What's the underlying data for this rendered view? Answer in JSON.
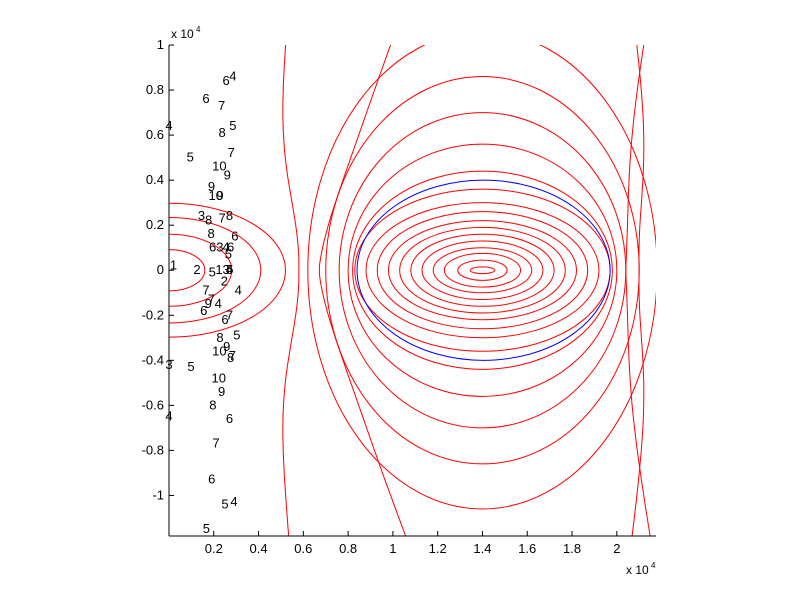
{
  "chart_data": {
    "type": "contour",
    "title": "",
    "xlabel": "",
    "ylabel": "",
    "x_exponent_label": "x 10",
    "x_exponent_power": "4",
    "y_exponent_label": "x 10",
    "y_exponent_power": "4",
    "xlim": [
      0,
      0.2175
    ],
    "ylim": [
      -1.18,
      1.0
    ],
    "xticks": [
      {
        "value": 0.02,
        "label": "0.2"
      },
      {
        "value": 0.04,
        "label": "0.4"
      },
      {
        "value": 0.06,
        "label": "0.6"
      },
      {
        "value": 0.08,
        "label": "0.8"
      },
      {
        "value": 0.1,
        "label": "1"
      },
      {
        "value": 0.12,
        "label": "1.2"
      },
      {
        "value": 0.14,
        "label": "1.4"
      },
      {
        "value": 0.16,
        "label": "1.6"
      },
      {
        "value": 0.18,
        "label": "1.8"
      },
      {
        "value": 0.2,
        "label": "2"
      }
    ],
    "yticks": [
      {
        "value": 1.0,
        "label": "1"
      },
      {
        "value": 0.8,
        "label": "0.8"
      },
      {
        "value": 0.6,
        "label": "0.6"
      },
      {
        "value": 0.4,
        "label": "0.4"
      },
      {
        "value": 0.2,
        "label": "0.2"
      },
      {
        "value": 0.0,
        "label": "0"
      },
      {
        "value": -0.2,
        "label": "-0.2"
      },
      {
        "value": -0.4,
        "label": "-0.4"
      },
      {
        "value": -0.6,
        "label": "-0.6"
      },
      {
        "value": -0.8,
        "label": "-0.8"
      },
      {
        "value": -1.0,
        "label": "-1"
      }
    ],
    "contour_color": "#ff0000",
    "boundary_color": "#0000ff",
    "left_source_center": [
      0.0,
      0.0
    ],
    "inner_source_center": [
      0.14,
      0.0
    ],
    "boundary_ellipse": {
      "cx": 0.1405,
      "cy": 0.0,
      "rx": 0.0565,
      "ry": 0.4
    },
    "contour_labels": [
      {
        "text": "1",
        "x": 0.002,
        "y": 0.02
      },
      {
        "text": "2",
        "x": 0.0125,
        "y": 0.0
      },
      {
        "text": "3",
        "x": 0.0145,
        "y": 0.24
      },
      {
        "text": "3",
        "x": 0.0,
        "y": -0.42
      },
      {
        "text": "4",
        "x": 0.0,
        "y": 0.64
      },
      {
        "text": "4",
        "x": 0.0,
        "y": -0.65
      },
      {
        "text": "4",
        "x": 0.027,
        "y": 0.0
      },
      {
        "text": "5",
        "x": 0.0095,
        "y": 0.5
      },
      {
        "text": "5",
        "x": 0.0098,
        "y": -0.43
      },
      {
        "text": "6",
        "x": 0.0165,
        "y": 0.76
      },
      {
        "text": "7",
        "x": 0.0235,
        "y": 0.73
      },
      {
        "text": "8",
        "x": 0.0177,
        "y": 0.22
      },
      {
        "text": "9",
        "x": 0.019,
        "y": 0.37
      },
      {
        "text": "6",
        "x": 0.0155,
        "y": -0.18
      },
      {
        "text": "7",
        "x": 0.0165,
        "y": -0.09
      },
      {
        "text": "6",
        "x": 0.0255,
        "y": 0.84
      },
      {
        "text": "8",
        "x": 0.0237,
        "y": 0.61
      },
      {
        "text": "10",
        "x": 0.0225,
        "y": 0.46
      },
      {
        "text": "10",
        "x": 0.0209,
        "y": 0.33
      },
      {
        "text": "9",
        "x": 0.0228,
        "y": 0.33
      },
      {
        "text": "7",
        "x": 0.0237,
        "y": 0.23
      },
      {
        "text": "8",
        "x": 0.027,
        "y": 0.24
      },
      {
        "text": "9",
        "x": 0.026,
        "y": 0.42
      },
      {
        "text": "7",
        "x": 0.0278,
        "y": 0.52
      },
      {
        "text": "5",
        "x": 0.0285,
        "y": 0.64
      },
      {
        "text": "4",
        "x": 0.0285,
        "y": 0.86
      },
      {
        "text": "8",
        "x": 0.0188,
        "y": 0.16
      },
      {
        "text": "6",
        "x": 0.0195,
        "y": 0.1
      },
      {
        "text": "5",
        "x": 0.0193,
        "y": -0.01
      },
      {
        "text": "3",
        "x": 0.0227,
        "y": 0.1
      },
      {
        "text": "1",
        "x": 0.0223,
        "y": 0.0
      },
      {
        "text": "2",
        "x": 0.0247,
        "y": -0.05
      },
      {
        "text": "3",
        "x": 0.0255,
        "y": 0.0
      },
      {
        "text": "4",
        "x": 0.0255,
        "y": 0.1
      },
      {
        "text": "5",
        "x": 0.0265,
        "y": 0.07
      },
      {
        "text": "6",
        "x": 0.0275,
        "y": 0.1
      },
      {
        "text": "5",
        "x": 0.0272,
        "y": 0.0
      },
      {
        "text": "4",
        "x": 0.022,
        "y": -0.15
      },
      {
        "text": "7",
        "x": 0.019,
        "y": -0.13
      },
      {
        "text": "9",
        "x": 0.0175,
        "y": -0.15
      },
      {
        "text": "6",
        "x": 0.025,
        "y": -0.22
      },
      {
        "text": "7",
        "x": 0.027,
        "y": -0.2
      },
      {
        "text": "8",
        "x": 0.0228,
        "y": -0.3
      },
      {
        "text": "10",
        "x": 0.0225,
        "y": -0.36
      },
      {
        "text": "9",
        "x": 0.0258,
        "y": -0.34
      },
      {
        "text": "8",
        "x": 0.0275,
        "y": -0.39
      },
      {
        "text": "7",
        "x": 0.0283,
        "y": -0.38
      },
      {
        "text": "6",
        "x": 0.0294,
        "y": 0.15
      },
      {
        "text": "5",
        "x": 0.0303,
        "y": -0.29
      },
      {
        "text": "4",
        "x": 0.0309,
        "y": -0.09
      },
      {
        "text": "10",
        "x": 0.0222,
        "y": -0.48
      },
      {
        "text": "9",
        "x": 0.0235,
        "y": -0.54
      },
      {
        "text": "8",
        "x": 0.0196,
        "y": -0.6
      },
      {
        "text": "7",
        "x": 0.021,
        "y": -0.77
      },
      {
        "text": "6",
        "x": 0.027,
        "y": -0.66
      },
      {
        "text": "6",
        "x": 0.0191,
        "y": -0.93
      },
      {
        "text": "5",
        "x": 0.025,
        "y": -1.04
      },
      {
        "text": "4",
        "x": 0.029,
        "y": -1.03
      },
      {
        "text": "5",
        "x": 0.0167,
        "y": -1.15
      }
    ]
  }
}
